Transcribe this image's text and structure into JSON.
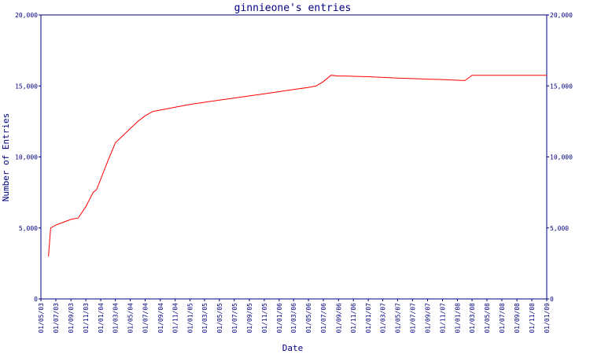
{
  "chart_data": {
    "type": "line",
    "title": "ginnieone's entries",
    "xlabel": "Date",
    "ylabel": "Number of Entries",
    "ylim": [
      0,
      20000
    ],
    "y_ticks": [
      "0",
      "5,000",
      "10,000",
      "15,000",
      "20,000"
    ],
    "y_tick_values": [
      0,
      5000,
      10000,
      15000,
      20000
    ],
    "x_ticks": [
      "01/05/03",
      "01/07/03",
      "01/09/03",
      "01/11/03",
      "01/01/04",
      "01/03/04",
      "01/05/04",
      "01/07/04",
      "01/09/04",
      "01/11/04",
      "01/01/05",
      "01/03/05",
      "01/05/05",
      "01/07/05",
      "01/09/05",
      "01/11/05",
      "01/01/06",
      "01/03/06",
      "01/05/06",
      "01/07/06",
      "01/09/06",
      "01/11/06",
      "01/01/07",
      "01/03/07",
      "01/05/07",
      "01/07/07",
      "01/09/07",
      "01/11/07",
      "01/01/08",
      "01/03/08",
      "01/05/08",
      "01/07/08",
      "01/09/08",
      "01/11/08",
      "01/01/09"
    ],
    "grid": false,
    "line_color": "#ff0000",
    "axis_color": "#000080",
    "text_color": "#000080",
    "series": [
      {
        "x": [
          "2003-06-01",
          "2003-06-10",
          "2003-07-01",
          "2003-08-01",
          "2003-09-01",
          "2003-10-01",
          "2003-11-01",
          "2003-12-01",
          "2003-12-15",
          "2004-02-01",
          "2004-03-01",
          "2004-04-01",
          "2004-05-01",
          "2004-06-01",
          "2004-07-01",
          "2004-08-01",
          "2004-09-01",
          "2004-10-01",
          "2004-11-01",
          "2005-01-01",
          "2005-03-01",
          "2005-05-01",
          "2005-07-01",
          "2005-09-01",
          "2005-11-01",
          "2006-01-01",
          "2006-03-01",
          "2006-05-01",
          "2006-06-01",
          "2006-07-01",
          "2006-08-01",
          "2006-09-01",
          "2006-10-01",
          "2006-11-01",
          "2007-01-01",
          "2007-03-01",
          "2007-05-01",
          "2007-07-01",
          "2007-09-01",
          "2007-11-01",
          "2008-01-01",
          "2008-02-01",
          "2008-03-01",
          "2008-05-01",
          "2008-07-01",
          "2008-09-01",
          "2008-11-01",
          "2009-01-01"
        ],
        "values": [
          3000,
          5000,
          5200,
          5400,
          5600,
          5700,
          6500,
          7500,
          7700,
          9800,
          11000,
          11500,
          12000,
          12500,
          12900,
          13200,
          13300,
          13400,
          13500,
          13700,
          13850,
          14000,
          14150,
          14300,
          14450,
          14600,
          14750,
          14900,
          15000,
          15300,
          15750,
          15700,
          15700,
          15680,
          15650,
          15600,
          15550,
          15520,
          15480,
          15450,
          15400,
          15380,
          15750,
          15750,
          15750,
          15750,
          15750,
          15750
        ]
      }
    ]
  }
}
